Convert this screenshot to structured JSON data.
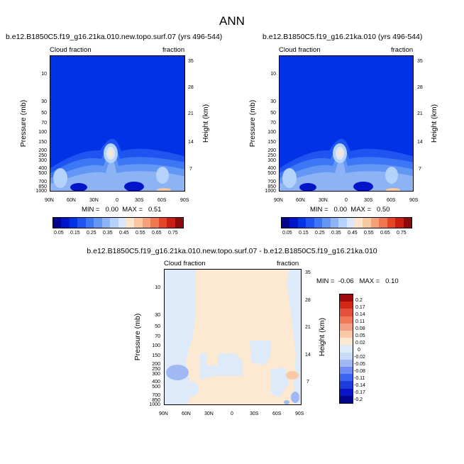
{
  "figure": {
    "title": "ANN",
    "palette_main": [
      "#03058c",
      "#0014c8",
      "#0032e6",
      "#1e55f0",
      "#3c78f5",
      "#6496f5",
      "#8cb4f5",
      "#b4d2fa",
      "#dce8fa",
      "#fde4cd",
      "#fac8a0",
      "#f5a078",
      "#f07850",
      "#e64628",
      "#c81e14",
      "#8c0a0a"
    ],
    "palette_diff": [
      "#03058c",
      "#0a14c8",
      "#1e3cdc",
      "#3c64f0",
      "#6e8cf5",
      "#a0b9f5",
      "#c8dcfa",
      "#dceafa",
      "#fde8d2",
      "#fac8a5",
      "#f5a082",
      "#f0785a",
      "#e6503c",
      "#d22814",
      "#a00a0a"
    ]
  },
  "chart_data": [
    {
      "type": "heatmap",
      "title": "b.e12.B1850C5.f19_g16.21ka.010.new.topo.surf.07 (yrs 496-544)",
      "left_label": "Cloud fraction",
      "right_label": "fraction",
      "ylabel": "Pressure (mb)",
      "ylabel_right": "Height (km)",
      "x_ticks": [
        "90N",
        "60N",
        "30N",
        "0",
        "30S",
        "60S",
        "90S"
      ],
      "y_ticks": [
        "10",
        "30",
        "50",
        "70",
        "100",
        "150",
        "200",
        "250",
        "300",
        "400",
        "500",
        "700",
        "850",
        "1000"
      ],
      "y_ticks_right": [
        "35",
        "28",
        "21",
        "14",
        "7"
      ],
      "stats": "MIN =   0.00  MAX =   0.51",
      "colorbar_labels": [
        "0.05",
        "0.15",
        "0.25",
        "0.35",
        "0.45",
        "0.55",
        "0.65",
        "0.75"
      ],
      "xlim": [
        90,
        -90
      ],
      "ylim": [
        1000,
        3
      ]
    },
    {
      "type": "heatmap",
      "title": "b.e12.B1850C5.f19_g16.21ka.010 (yrs 496-544)",
      "left_label": "Cloud fraction",
      "right_label": "fraction",
      "ylabel": "Pressure (mb)",
      "ylabel_right": "Height (km)",
      "x_ticks": [
        "90N",
        "60N",
        "30N",
        "0",
        "30S",
        "60S",
        "90S"
      ],
      "y_ticks": [
        "10",
        "30",
        "50",
        "70",
        "100",
        "150",
        "200",
        "250",
        "300",
        "400",
        "500",
        "700",
        "850",
        "1000"
      ],
      "y_ticks_right": [
        "35",
        "28",
        "21",
        "14",
        "7"
      ],
      "stats": "MIN =   0.00  MAX =   0.50",
      "colorbar_labels": [
        "0.05",
        "0.15",
        "0.25",
        "0.35",
        "0.45",
        "0.55",
        "0.65",
        "0.75"
      ],
      "xlim": [
        90,
        -90
      ],
      "ylim": [
        1000,
        3
      ]
    },
    {
      "type": "heatmap",
      "title": "b.e12.B1850C5.f19_g16.21ka.010.new.topo.surf.07 - b.e12.B1850C5.f19_g16.21ka.010",
      "left_label": "Cloud fraction",
      "right_label": "fraction",
      "ylabel": "Pressure (mb)",
      "ylabel_right": "Height (km)",
      "x_ticks": [
        "90N",
        "60N",
        "30N",
        "0",
        "30S",
        "60S",
        "90S"
      ],
      "y_ticks": [
        "10",
        "30",
        "50",
        "70",
        "100",
        "150",
        "200",
        "250",
        "300",
        "400",
        "500",
        "700",
        "850",
        "1000"
      ],
      "y_ticks_right": [
        "35",
        "28",
        "21",
        "14",
        "7"
      ],
      "stats": "MIN =  -0.06   MAX =   0.10",
      "colorbar_labels": [
        "0.2",
        "0.17",
        "0.14",
        "0.11",
        "0.08",
        "0.05",
        "0.02",
        "0",
        "-0.02",
        "-0.05",
        "-0.08",
        "-0.11",
        "-0.14",
        "-0.17",
        "-0.2"
      ],
      "xlim": [
        90,
        -90
      ],
      "ylim": [
        1000,
        3
      ]
    }
  ]
}
